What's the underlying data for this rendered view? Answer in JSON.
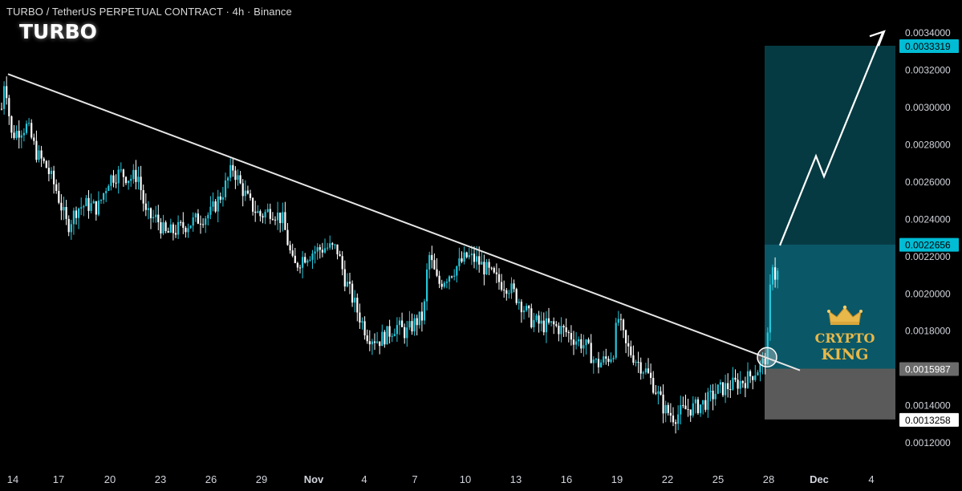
{
  "header": {
    "symbol_line": "TURBO / TetherUS PERPETUAL CONTRACT · 4h · Binance",
    "title": "TURBO"
  },
  "logo": {
    "line1": "CRYPTO",
    "line2": "KING"
  },
  "colors": {
    "up": "#26c6da",
    "down": "#ffffff",
    "trendline": "#e6e6e6",
    "target_zone": "#0a5d6b",
    "stop_zone": "#5a5a5a",
    "price_label_bg": "#00bcd4"
  },
  "chart_data": {
    "type": "candlestick",
    "pair": "TURBO/USDT",
    "timeframe": "4h",
    "ylim": [
      0.00114,
      0.0035
    ],
    "y_ticks": [
      "0.0034000",
      "0.0032000",
      "0.0030000",
      "0.0028000",
      "0.0026000",
      "0.0024000",
      "0.0022000",
      "0.0020000",
      "0.0018000",
      "0.0016000",
      "0.0014000",
      "0.0012000"
    ],
    "x_ticks": [
      "14",
      "17",
      "20",
      "23",
      "26",
      "29",
      "Nov",
      "4",
      "7",
      "10",
      "13",
      "16",
      "19",
      "22",
      "25",
      "28",
      "Dec",
      "4"
    ],
    "price_labels": [
      {
        "value": "0.0033319",
        "style": "target"
      },
      {
        "value": "0.0022656",
        "style": "current"
      },
      {
        "value": "0.0015987",
        "style": "entry"
      },
      {
        "value": "0.0013258",
        "style": "stop"
      }
    ],
    "trendline": {
      "start": {
        "date": "14",
        "price": 0.00318
      },
      "end": {
        "date": "28",
        "price": 0.00159
      }
    },
    "breakout_point": {
      "date": "28",
      "price": 0.00166
    },
    "zones": {
      "target": {
        "from": 0.0015987,
        "to": 0.0033319
      },
      "current": 0.0022656,
      "stop": {
        "from": 0.0013258,
        "to": 0.0015987
      }
    },
    "projection": [
      0.00226,
      0.00274,
      0.00263,
      0.0034
    ],
    "close_path": [
      [
        0,
        0.0029
      ],
      [
        6,
        0.00318
      ],
      [
        14,
        0.00285
      ],
      [
        24,
        0.00288
      ],
      [
        34,
        0.0029
      ],
      [
        46,
        0.00275
      ],
      [
        58,
        0.00268
      ],
      [
        70,
        0.00256
      ],
      [
        84,
        0.00236
      ],
      [
        96,
        0.00246
      ],
      [
        108,
        0.00248
      ],
      [
        122,
        0.00246
      ],
      [
        136,
        0.00262
      ],
      [
        150,
        0.00265
      ],
      [
        162,
        0.00262
      ],
      [
        172,
        0.00264
      ],
      [
        182,
        0.00242
      ],
      [
        196,
        0.0024
      ],
      [
        206,
        0.00232
      ],
      [
        218,
        0.00234
      ],
      [
        232,
        0.00237
      ],
      [
        246,
        0.0024
      ],
      [
        262,
        0.00243
      ],
      [
        278,
        0.00255
      ],
      [
        290,
        0.00268
      ],
      [
        300,
        0.00258
      ],
      [
        312,
        0.00248
      ],
      [
        324,
        0.00242
      ],
      [
        338,
        0.00245
      ],
      [
        352,
        0.0024
      ],
      [
        366,
        0.00214
      ],
      [
        378,
        0.0022
      ],
      [
        392,
        0.00223
      ],
      [
        406,
        0.00225
      ],
      [
        420,
        0.00224
      ],
      [
        430,
        0.00208
      ],
      [
        446,
        0.0019
      ],
      [
        458,
        0.00178
      ],
      [
        472,
        0.00175
      ],
      [
        482,
        0.00178
      ],
      [
        494,
        0.00183
      ],
      [
        506,
        0.00179
      ],
      [
        518,
        0.00185
      ],
      [
        528,
        0.00188
      ],
      [
        534,
        0.00222
      ],
      [
        546,
        0.00205
      ],
      [
        558,
        0.0021
      ],
      [
        570,
        0.00215
      ],
      [
        582,
        0.0022
      ],
      [
        594,
        0.00218
      ],
      [
        606,
        0.00213
      ],
      [
        620,
        0.00207
      ],
      [
        634,
        0.00204
      ],
      [
        648,
        0.00196
      ],
      [
        662,
        0.00186
      ],
      [
        676,
        0.00183
      ],
      [
        690,
        0.00183
      ],
      [
        704,
        0.0018
      ],
      [
        716,
        0.00176
      ],
      [
        730,
        0.00172
      ],
      [
        744,
        0.00162
      ],
      [
        756,
        0.00165
      ],
      [
        764,
        0.00168
      ],
      [
        770,
        0.00188
      ],
      [
        780,
        0.00172
      ],
      [
        794,
        0.00164
      ],
      [
        806,
        0.00158
      ],
      [
        818,
        0.00148
      ],
      [
        828,
        0.00138
      ],
      [
        840,
        0.00134
      ],
      [
        854,
        0.00138
      ],
      [
        866,
        0.00139
      ],
      [
        880,
        0.00142
      ],
      [
        894,
        0.00148
      ],
      [
        906,
        0.0015
      ],
      [
        918,
        0.00152
      ],
      [
        930,
        0.00154
      ],
      [
        940,
        0.00158
      ],
      [
        950,
        0.00162
      ],
      [
        956,
        0.00168
      ],
      [
        962,
        0.0022
      ],
      [
        968,
        0.00205
      ],
      [
        972,
        0.00226
      ]
    ]
  }
}
